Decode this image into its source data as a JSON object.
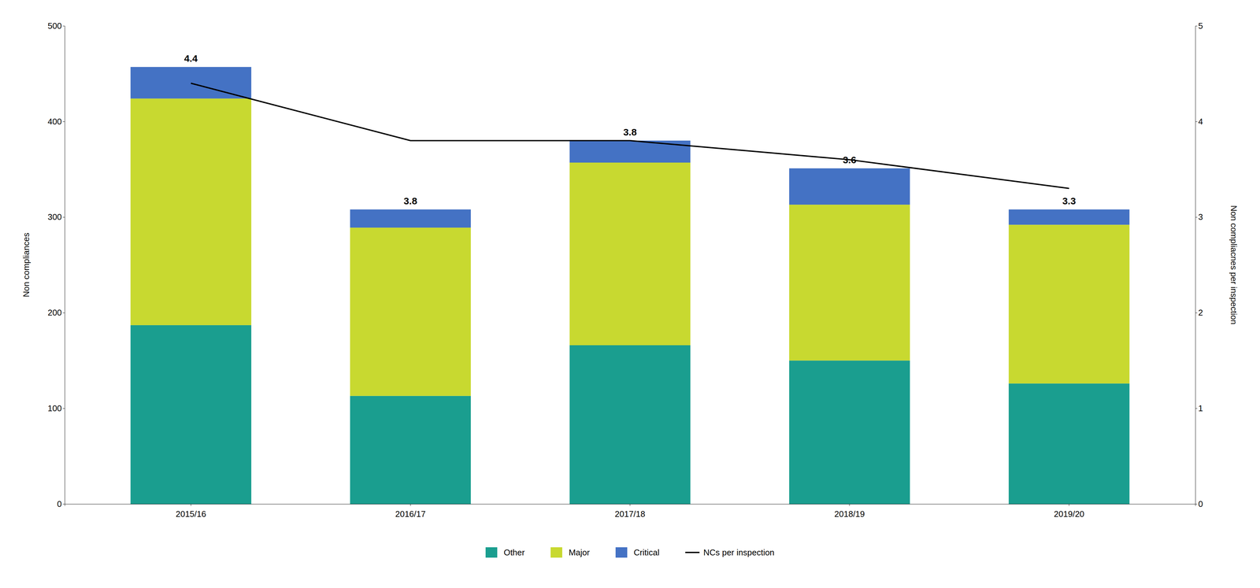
{
  "chart_data": {
    "type": "bar",
    "stacked": true,
    "categories": [
      "2015/16",
      "2016/17",
      "2017/18",
      "2018/19",
      "2019/20"
    ],
    "series": [
      {
        "name": "Other",
        "color": "#1a9e8f",
        "values": [
          187,
          113,
          166,
          150,
          126
        ]
      },
      {
        "name": "Major",
        "color": "#c8d930",
        "values": [
          237,
          176,
          191,
          163,
          166
        ]
      },
      {
        "name": "Critical",
        "color": "#4472c4",
        "values": [
          33,
          19,
          23,
          38,
          16
        ]
      },
      {
        "name": "NCs per inspection",
        "type": "line",
        "axis": "y2",
        "color": "#000000",
        "data_labels": true,
        "values": [
          4.4,
          3.8,
          3.8,
          3.6,
          3.3
        ]
      }
    ],
    "ylabel": "Non compliances",
    "y2label": "Non compliacnes per inspection",
    "ylim": [
      0,
      500
    ],
    "yticks": [
      0,
      100,
      200,
      300,
      400,
      500
    ],
    "y2lim": [
      0,
      5.0
    ],
    "y2ticks": [
      0,
      1,
      2,
      3,
      4,
      5
    ],
    "grid": false,
    "legend": "bottom"
  }
}
